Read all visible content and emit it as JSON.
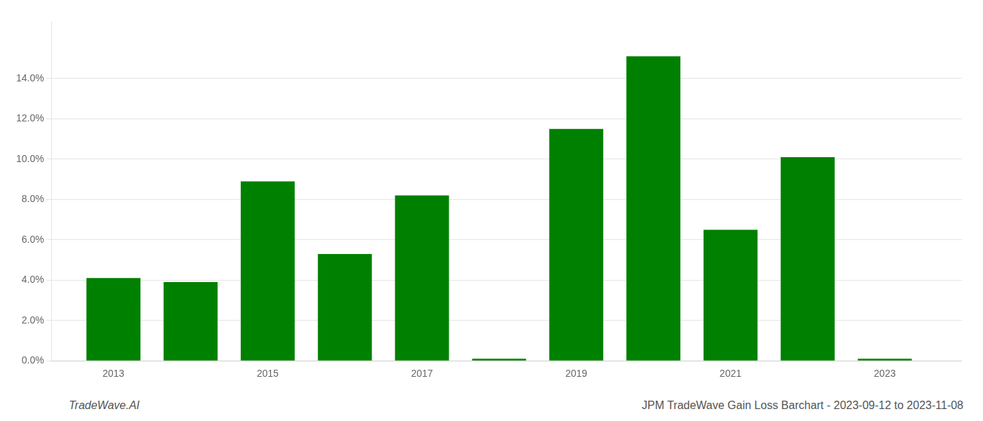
{
  "chart_data": {
    "type": "bar",
    "x": [
      2013,
      2014,
      2015,
      2016,
      2017,
      2018,
      2019,
      2020,
      2021,
      2022,
      2023
    ],
    "values": [
      0.041,
      0.039,
      0.089,
      0.053,
      0.082,
      0.001,
      0.115,
      0.151,
      0.065,
      0.101,
      0.001
    ],
    "color": "#008000",
    "xlim": [
      2012.2,
      2024.0
    ],
    "xticks": [
      2013,
      2015,
      2017,
      2019,
      2021,
      2023
    ],
    "ylim": [
      0,
      0.168
    ],
    "yticks": [
      {
        "value": 0.0,
        "label": "0.0%"
      },
      {
        "value": 0.02,
        "label": "2.0%"
      },
      {
        "value": 0.04,
        "label": "4.0%"
      },
      {
        "value": 0.06,
        "label": "6.0%"
      },
      {
        "value": 0.08,
        "label": "8.0%"
      },
      {
        "value": 0.1,
        "label": "10.0%"
      },
      {
        "value": 0.12,
        "label": "12.0%"
      },
      {
        "value": 0.14,
        "label": "14.0%"
      }
    ],
    "grid": true,
    "annotations": [
      "TradeWave.AI",
      "JPM TradeWave Gain Loss Barchart - 2023-09-12 to 2023-11-08"
    ]
  }
}
